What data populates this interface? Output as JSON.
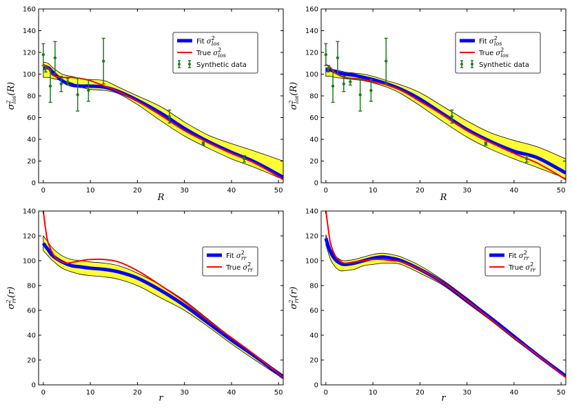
{
  "chart_data": [
    {
      "type": "line",
      "id": "top-left",
      "xlabel": "R",
      "ylabel": "σ²_los(R)",
      "xlim": [
        -1,
        51
      ],
      "ylim": [
        0,
        160
      ],
      "xticks": [
        0,
        10,
        20,
        30,
        40,
        50
      ],
      "yticks": [
        0,
        20,
        40,
        60,
        80,
        100,
        120,
        140,
        160
      ],
      "legend": {
        "position": "top-right",
        "entries": [
          {
            "label": "Fit σ²_los",
            "kind": "fit"
          },
          {
            "label": "True σ²_los",
            "kind": "true"
          },
          {
            "label": "Synthetic data",
            "kind": "data"
          }
        ]
      },
      "band": {
        "x": [
          0,
          1,
          2,
          4,
          6,
          8,
          10,
          13,
          16,
          20,
          25,
          30,
          35,
          40,
          45,
          51
        ],
        "upper": [
          111,
          110,
          106,
          100,
          98,
          96,
          95,
          94,
          88,
          80,
          70,
          56,
          44,
          36,
          29,
          20
        ],
        "lower": [
          97,
          97,
          96,
          94,
          92,
          88,
          86,
          85,
          82,
          72,
          57,
          43,
          32,
          22,
          14,
          3
        ]
      },
      "series": [
        {
          "name": "Fit",
          "x": [
            0,
            1,
            2,
            4,
            6,
            8,
            10,
            13,
            16,
            20,
            25,
            30,
            35,
            40,
            45,
            51
          ],
          "values": [
            105,
            106,
            102,
            94,
            90,
            89,
            89,
            88,
            84,
            76,
            64,
            50,
            38,
            28,
            19,
            5
          ]
        },
        {
          "name": "True",
          "x": [
            0,
            1,
            2,
            4,
            6,
            8,
            10,
            13,
            16,
            20,
            25,
            30,
            35,
            40,
            45,
            51
          ],
          "values": [
            109,
            106,
            99,
            97,
            97,
            96,
            94,
            89,
            84,
            75,
            62,
            48,
            37,
            27,
            18,
            3
          ]
        }
      ],
      "data_points": [
        {
          "x": 0,
          "y": 118,
          "err": 10
        },
        {
          "x": 0.5,
          "y": 105,
          "err": 3
        },
        {
          "x": 1.5,
          "y": 89,
          "err": 15
        },
        {
          "x": 2.5,
          "y": 115,
          "err": 15
        },
        {
          "x": 3.8,
          "y": 91,
          "err": 7
        },
        {
          "x": 5.2,
          "y": 93,
          "err": 3
        },
        {
          "x": 7.3,
          "y": 81,
          "err": 15
        },
        {
          "x": 9.6,
          "y": 85,
          "err": 10
        },
        {
          "x": 12.8,
          "y": 112,
          "err": 21
        },
        {
          "x": 26.8,
          "y": 61,
          "err": 6
        },
        {
          "x": 34,
          "y": 36,
          "err": 1.5
        },
        {
          "x": 42.7,
          "y": 22,
          "err": 3
        }
      ]
    },
    {
      "type": "line",
      "id": "top-right",
      "xlabel": "R",
      "ylabel": "σ²_los(R)",
      "xlim": [
        -1,
        51
      ],
      "ylim": [
        0,
        160
      ],
      "xticks": [
        0,
        10,
        20,
        30,
        40,
        50
      ],
      "yticks": [
        0,
        20,
        40,
        60,
        80,
        100,
        120,
        140,
        160
      ],
      "legend": {
        "position": "top-right",
        "entries": [
          {
            "label": "Fit σ²_los",
            "kind": "fit"
          },
          {
            "label": "True σ²_los",
            "kind": "true"
          },
          {
            "label": "Synthetic data",
            "kind": "data"
          }
        ]
      },
      "band": {
        "x": [
          0,
          1,
          2,
          4,
          6,
          8,
          10,
          13,
          16,
          20,
          25,
          30,
          35,
          40,
          45,
          51
        ],
        "upper": [
          106,
          105,
          104,
          102,
          101,
          100,
          98,
          94,
          90,
          83,
          70,
          57,
          46,
          39,
          33,
          22
        ],
        "lower": [
          98,
          98,
          97,
          96,
          95,
          94,
          92,
          88,
          82,
          71,
          56,
          42,
          31,
          22,
          14,
          4
        ]
      },
      "series": [
        {
          "name": "Fit",
          "x": [
            0,
            1,
            2,
            4,
            6,
            8,
            10,
            13,
            16,
            20,
            25,
            30,
            35,
            40,
            45,
            51
          ],
          "values": [
            104,
            104,
            102,
            100,
            99,
            97,
            95,
            91,
            86,
            77,
            63,
            49,
            38,
            29,
            23,
            9
          ]
        },
        {
          "name": "True",
          "x": [
            0,
            1,
            2,
            4,
            6,
            8,
            10,
            13,
            16,
            20,
            25,
            30,
            35,
            40,
            45,
            51
          ],
          "values": [
            109,
            106,
            101,
            97,
            96,
            95,
            93,
            90,
            85,
            75,
            62,
            48,
            37,
            27,
            18,
            3
          ]
        }
      ],
      "data_points": [
        {
          "x": 0,
          "y": 118,
          "err": 10
        },
        {
          "x": 0.5,
          "y": 105,
          "err": 3
        },
        {
          "x": 1.5,
          "y": 89,
          "err": 15
        },
        {
          "x": 2.5,
          "y": 115,
          "err": 15
        },
        {
          "x": 3.8,
          "y": 91,
          "err": 7
        },
        {
          "x": 5.2,
          "y": 93,
          "err": 3
        },
        {
          "x": 7.3,
          "y": 81,
          "err": 15
        },
        {
          "x": 9.6,
          "y": 85,
          "err": 10
        },
        {
          "x": 12.8,
          "y": 112,
          "err": 21
        },
        {
          "x": 26.8,
          "y": 61,
          "err": 6
        },
        {
          "x": 34,
          "y": 36,
          "err": 1.5
        },
        {
          "x": 42.7,
          "y": 22,
          "err": 3
        }
      ]
    },
    {
      "type": "line",
      "id": "bottom-left",
      "xlabel": "r",
      "ylabel": "σ²_rr(r)",
      "xlim": [
        -1,
        51
      ],
      "ylim": [
        0,
        140
      ],
      "xticks": [
        0,
        10,
        20,
        30,
        40,
        50
      ],
      "yticks": [
        0,
        20,
        40,
        60,
        80,
        100,
        120,
        140
      ],
      "legend": {
        "position": "top-right",
        "entries": [
          {
            "label": "Fit σ²_rr",
            "kind": "fit"
          },
          {
            "label": "True σ²_rr",
            "kind": "true"
          }
        ]
      },
      "band": {
        "x": [
          0,
          1,
          2,
          4,
          6,
          8,
          10,
          13,
          16,
          20,
          25,
          30,
          35,
          40,
          45,
          51
        ],
        "upper": [
          120,
          115,
          110,
          104,
          101,
          100,
          99,
          98,
          96,
          90,
          80,
          68,
          53,
          38,
          24,
          8
        ],
        "lower": [
          108,
          104,
          100,
          94,
          91,
          89,
          88,
          87,
          85,
          80,
          70,
          60,
          47,
          33,
          20,
          5
        ]
      },
      "series": [
        {
          "name": "Fit",
          "x": [
            0,
            1,
            2,
            4,
            6,
            8,
            10,
            13,
            16,
            20,
            25,
            30,
            35,
            40,
            45,
            51
          ],
          "values": [
            114,
            109,
            104,
            99,
            96,
            95,
            94,
            93,
            91,
            86,
            76,
            64,
            50,
            36,
            23,
            6
          ]
        },
        {
          "name": "True",
          "x": [
            0,
            0.5,
            1,
            2,
            3,
            4,
            5,
            6,
            8,
            10,
            13,
            16,
            20,
            25,
            30,
            35,
            40,
            45,
            51
          ],
          "values": [
            140,
            125,
            115,
            106,
            101,
            99,
            98,
            98.5,
            100,
            101,
            101,
            99,
            92,
            80,
            67,
            52,
            38,
            24,
            6
          ]
        }
      ]
    },
    {
      "type": "line",
      "id": "bottom-right",
      "xlabel": "r",
      "ylabel": "σ²_rr(r)",
      "xlim": [
        -1,
        51
      ],
      "ylim": [
        0,
        140
      ],
      "xticks": [
        0,
        10,
        20,
        30,
        40,
        50
      ],
      "yticks": [
        0,
        20,
        40,
        60,
        80,
        100,
        120,
        140
      ],
      "legend": {
        "position": "top-right",
        "entries": [
          {
            "label": "Fit σ²_rr",
            "kind": "fit"
          },
          {
            "label": "True σ²_rr",
            "kind": "true"
          }
        ]
      },
      "band": {
        "x": [
          0,
          1,
          2,
          3,
          4,
          6,
          8,
          10,
          12,
          14,
          16,
          20,
          25,
          30,
          35,
          40,
          45,
          51
        ],
        "upper": [
          121,
          110,
          104,
          101,
          100,
          101,
          103,
          105,
          106,
          105,
          103,
          96,
          84,
          70,
          55,
          40,
          25,
          8
        ],
        "lower": [
          113,
          101,
          95,
          92,
          92,
          93,
          96,
          97,
          98,
          98,
          97,
          90,
          80,
          66,
          52,
          37,
          23,
          6
        ]
      },
      "series": [
        {
          "name": "Fit",
          "x": [
            0,
            1,
            2,
            3,
            4,
            6,
            8,
            10,
            12,
            14,
            16,
            20,
            25,
            30,
            35,
            40,
            45,
            51
          ],
          "values": [
            118,
            107,
            101,
            98,
            97,
            98,
            100,
            102,
            103,
            102,
            100,
            93,
            82,
            68,
            54,
            39,
            24,
            7
          ]
        },
        {
          "name": "True",
          "x": [
            0,
            0.5,
            1,
            2,
            3,
            4,
            6,
            8,
            10,
            12,
            14,
            16,
            20,
            25,
            30,
            35,
            40,
            45,
            51
          ],
          "values": [
            140,
            126,
            114,
            104,
            100,
            98,
            99,
            100,
            101,
            101,
            100,
            99,
            93,
            82,
            68,
            53,
            38,
            24,
            6
          ]
        }
      ]
    }
  ],
  "colors": {
    "fit": "#0000ff",
    "true": "#ff0000",
    "band": "#ffff33",
    "data": "#1e7b1e"
  }
}
